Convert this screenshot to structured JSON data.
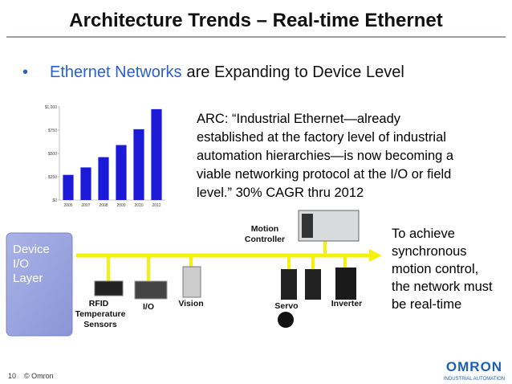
{
  "header": {
    "title": "Architecture Trends – Real-time Ethernet"
  },
  "bullet": {
    "highlight": "Ethernet Networks",
    "rest": "are Expanding to Device Level"
  },
  "chart_data": {
    "type": "bar",
    "categories": [
      "2005",
      "2007",
      "2008",
      "2009",
      "2010",
      "2012"
    ],
    "values": [
      270,
      350,
      460,
      590,
      760,
      975
    ],
    "color": "#1a1ad8",
    "ylim": [
      0,
      1000
    ],
    "yticks": [
      {
        "value": 0,
        "label": "$0"
      },
      {
        "value": 250,
        "label": "$250"
      },
      {
        "value": 500,
        "label": "$500"
      },
      {
        "value": 750,
        "label": "$750"
      },
      {
        "value": 1000,
        "label": "$1,000"
      }
    ]
  },
  "quote": {
    "lines": [
      "ARC:  “Industrial Ethernet—already",
      "established at the factory level of industrial",
      "automation hierarchies—is now becoming a",
      "viable networking protocol at the I/O or field",
      "level.” 30% CAGR thru 2012"
    ]
  },
  "diagram": {
    "layer_label": [
      "Device",
      "I/O",
      "Layer"
    ],
    "motion_controller": [
      "Motion",
      "Controller"
    ],
    "rfid": [
      "RFID",
      "Temperature",
      "Sensors"
    ],
    "io": "I/O",
    "vision": "Vision",
    "servo": "Servo",
    "inverter": "Inverter"
  },
  "callout": {
    "lines": [
      "To achieve",
      "synchronous",
      "motion control,",
      "the network must",
      "be real-time"
    ]
  },
  "footer": {
    "page": "10",
    "copyright": "© Omron",
    "logo": "OMRON",
    "logo_sub": "INDUSTRIAL AUTOMATION"
  }
}
